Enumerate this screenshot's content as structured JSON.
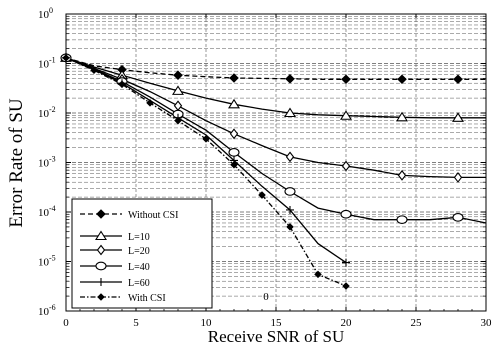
{
  "chart_data": {
    "type": "line",
    "xlabel": "Receive SNR of SU",
    "ylabel": "Error Rate of SU",
    "xlim": [
      0,
      30
    ],
    "ylim_log10": [
      -6,
      0
    ],
    "y_scale": "log",
    "grid": "dashed",
    "legend_position": "bottom-left",
    "x_ticks": [
      "0",
      "5",
      "10",
      "15",
      "20",
      "25",
      "30"
    ],
    "y_ticks": [
      {
        "base": "10",
        "exp": "0"
      },
      {
        "base": "10",
        "exp": "-1"
      },
      {
        "base": "10",
        "exp": "-2"
      },
      {
        "base": "10",
        "exp": "-3"
      },
      {
        "base": "10",
        "exp": "-4"
      },
      {
        "base": "10",
        "exp": "-5"
      },
      {
        "base": "10",
        "exp": "-6"
      }
    ],
    "annotation": "0",
    "series": [
      {
        "name": "Without CSI",
        "marker": "diamond-filled",
        "dash": "dashed",
        "x": [
          0,
          2,
          4,
          6,
          8,
          10,
          12,
          14,
          16,
          18,
          20,
          22,
          24,
          26,
          28,
          30
        ],
        "y": [
          0.13,
          0.09,
          0.075,
          0.065,
          0.058,
          0.054,
          0.051,
          0.05,
          0.049,
          0.048,
          0.048,
          0.048,
          0.048,
          0.048,
          0.048,
          0.048
        ]
      },
      {
        "name": "L=10",
        "marker": "triangle",
        "dash": "solid",
        "x": [
          0,
          2,
          4,
          6,
          8,
          10,
          12,
          14,
          16,
          18,
          20,
          22,
          24,
          26,
          28,
          30
        ],
        "y": [
          0.13,
          0.085,
          0.058,
          0.04,
          0.028,
          0.02,
          0.015,
          0.012,
          0.01,
          0.0092,
          0.0088,
          0.0085,
          0.0082,
          0.008,
          0.008,
          0.008
        ]
      },
      {
        "name": "L=20",
        "marker": "diamond-open",
        "dash": "solid",
        "x": [
          0,
          2,
          4,
          6,
          8,
          10,
          12,
          14,
          16,
          18,
          20,
          22,
          24,
          26,
          28,
          30
        ],
        "y": [
          0.13,
          0.08,
          0.048,
          0.027,
          0.014,
          0.007,
          0.0038,
          0.0022,
          0.0013,
          0.001,
          0.00085,
          0.0007,
          0.00055,
          0.00052,
          0.0005,
          0.0005
        ]
      },
      {
        "name": "L=40",
        "marker": "circle-open",
        "dash": "solid",
        "x": [
          0,
          2,
          4,
          6,
          8,
          10,
          12,
          14,
          16,
          18,
          20,
          22,
          24,
          26,
          28,
          30
        ],
        "y": [
          0.13,
          0.077,
          0.043,
          0.021,
          0.0095,
          0.0045,
          0.0016,
          0.0006,
          0.00026,
          0.00012,
          9e-05,
          7e-05,
          7e-05,
          7e-05,
          7.8e-05,
          6e-05
        ]
      },
      {
        "name": "L=60",
        "marker": "plus",
        "dash": "solid",
        "x": [
          0,
          2,
          4,
          6,
          8,
          10,
          12,
          14,
          16,
          18,
          20
        ],
        "y": [
          0.13,
          0.075,
          0.04,
          0.018,
          0.008,
          0.0036,
          0.0011,
          0.00033,
          0.00011,
          2.3e-05,
          9.5e-06
        ]
      },
      {
        "name": "With CSI",
        "marker": "diamond-filled-small",
        "dash": "dashdot",
        "x": [
          0,
          2,
          4,
          6,
          8,
          10,
          12,
          14,
          16,
          18,
          20
        ],
        "y": [
          0.13,
          0.073,
          0.038,
          0.016,
          0.007,
          0.003,
          0.0009,
          0.00022,
          5e-05,
          5.5e-06,
          3.2e-06
        ]
      }
    ]
  }
}
